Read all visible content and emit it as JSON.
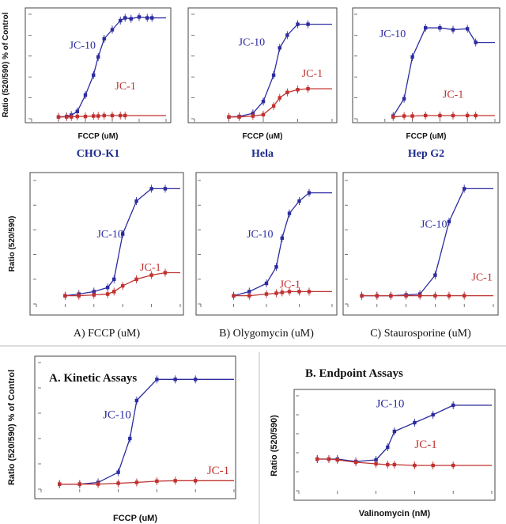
{
  "colors": {
    "jc10": "#2c2ca0",
    "jc1": "#c0312f",
    "caption": "#1d2a8c",
    "frame": "#444444",
    "text": "#111111"
  },
  "chart_data": [
    {
      "type": "scatter",
      "xscale": "log",
      "xlim": [
        0.001,
        100
      ],
      "ylim": [
        0,
        1150
      ],
      "xlabel": "FCCP (uM)",
      "ylabel": "",
      "caption": "CHO-K1",
      "series": [
        {
          "name": "JC-10",
          "x": [
            0.01,
            0.02,
            0.03,
            0.05,
            0.1,
            0.2,
            0.3,
            0.5,
            1,
            2,
            3,
            5,
            10,
            20,
            30
          ],
          "y": [
            20,
            25,
            40,
            80,
            260,
            480,
            680,
            880,
            980,
            1080,
            1110,
            1100,
            1120,
            1110,
            1110
          ]
        },
        {
          "name": "JC-1",
          "x": [
            0.01,
            0.02,
            0.03,
            0.05,
            0.1,
            0.2,
            0.3,
            0.5,
            1,
            2,
            3
          ],
          "y": [
            20,
            20,
            20,
            25,
            25,
            30,
            30,
            35,
            35,
            35,
            35
          ]
        }
      ],
      "labels": [
        "JC-10",
        "JC-1"
      ]
    },
    {
      "type": "scatter",
      "xscale": "log",
      "xlim": [
        0.001,
        10
      ],
      "ylim": [
        0,
        1150
      ],
      "xlabel": "FCCP (uM)",
      "caption": "Hela",
      "series": [
        {
          "name": "JC-10",
          "x": [
            0.01,
            0.02,
            0.05,
            0.1,
            0.2,
            0.3,
            0.5,
            1,
            2
          ],
          "y": [
            20,
            25,
            60,
            190,
            480,
            780,
            920,
            1040,
            1040
          ]
        },
        {
          "name": "JC-1",
          "x": [
            0.01,
            0.02,
            0.05,
            0.1,
            0.2,
            0.3,
            0.5,
            1,
            2
          ],
          "y": [
            20,
            20,
            30,
            45,
            140,
            230,
            290,
            320,
            330
          ]
        }
      ],
      "labels": [
        "JC-10",
        "JC-1"
      ]
    },
    {
      "type": "scatter",
      "xscale": "log",
      "xlim": [
        0.001,
        100
      ],
      "ylim": [
        0,
        1150
      ],
      "xlabel": "FCCP (uM)",
      "caption": "Hep G2",
      "series": [
        {
          "name": "JC-10",
          "x": [
            0.02,
            0.05,
            0.1,
            0.3,
            1,
            3,
            10,
            20
          ],
          "y": [
            30,
            220,
            680,
            1000,
            1000,
            980,
            990,
            840
          ]
        },
        {
          "name": "JC-1",
          "x": [
            0.02,
            0.05,
            0.1,
            0.3,
            1,
            3,
            10,
            20
          ],
          "y": [
            20,
            30,
            30,
            35,
            35,
            35,
            35,
            35
          ]
        }
      ],
      "labels": [
        "JC-10",
        "JC-1"
      ]
    },
    {
      "type": "scatter",
      "xscale": "log",
      "xlim": [
        0.0001,
        10
      ],
      "ylim": [
        0,
        15
      ],
      "xlabel": "",
      "ylabel": "Ratio (520/590)",
      "caption": "A) FCCP (uM)",
      "series": [
        {
          "name": "JC-10",
          "x": [
            0.001,
            0.003,
            0.01,
            0.03,
            0.05,
            0.1,
            0.3,
            1,
            3
          ],
          "y": [
            1.0,
            1.2,
            1.5,
            2.0,
            3.0,
            8.5,
            12.5,
            14.0,
            14.0
          ]
        },
        {
          "name": "JC-1",
          "x": [
            0.001,
            0.003,
            0.01,
            0.03,
            0.05,
            0.1,
            0.3,
            1,
            3
          ],
          "y": [
            1.0,
            1.0,
            1.1,
            1.2,
            1.5,
            2.2,
            3.0,
            3.5,
            3.8
          ]
        }
      ],
      "labels": [
        "JC-10",
        "JC-1"
      ]
    },
    {
      "type": "scatter",
      "xscale": "log",
      "xlim": [
        0.001,
        10
      ],
      "ylim": [
        0,
        15
      ],
      "xlabel": "",
      "caption": "B) Olygomycin (uM)",
      "series": [
        {
          "name": "JC-10",
          "x": [
            0.01,
            0.03,
            0.1,
            0.2,
            0.3,
            0.5,
            1,
            2
          ],
          "y": [
            1.0,
            1.5,
            2.5,
            4.5,
            8.0,
            11.0,
            12.5,
            13.5
          ]
        },
        {
          "name": "JC-1",
          "x": [
            0.01,
            0.03,
            0.1,
            0.2,
            0.3,
            0.5,
            1,
            2
          ],
          "y": [
            1.0,
            1.0,
            1.2,
            1.3,
            1.4,
            1.5,
            1.5,
            1.5
          ]
        }
      ],
      "labels": [
        "JC-10",
        "JC-1"
      ]
    },
    {
      "type": "scatter",
      "xscale": "log",
      "xlim": [
        0.001,
        100
      ],
      "ylim": [
        0,
        15
      ],
      "xlabel": "",
      "caption": "C) Staurosporine (uM)",
      "series": [
        {
          "name": "JC-10",
          "x": [
            0.003,
            0.01,
            0.03,
            0.1,
            0.3,
            1,
            3,
            10
          ],
          "y": [
            1.0,
            1.0,
            1.0,
            1.1,
            1.2,
            3.5,
            10.0,
            14.0
          ]
        },
        {
          "name": "JC-1",
          "x": [
            0.003,
            0.01,
            0.03,
            0.1,
            0.3,
            1,
            3,
            10
          ],
          "y": [
            1.0,
            1.0,
            1.0,
            1.0,
            1.0,
            1.0,
            1.0,
            1.0
          ]
        }
      ],
      "labels": [
        "JC-10",
        "JC-1"
      ]
    },
    {
      "type": "scatter",
      "xscale": "log",
      "xlim": [
        0.001,
        100
      ],
      "ylim": [
        0,
        1500
      ],
      "xlabel": "FCCP (uM)",
      "ylabel": "Ratio (520/590) % of Control",
      "title": "A. Kinetic Assays",
      "series": [
        {
          "name": "JC-10",
          "x": [
            0.003,
            0.01,
            0.03,
            0.1,
            0.2,
            0.3,
            1,
            3,
            10
          ],
          "y": [
            60,
            60,
            80,
            200,
            600,
            1050,
            1300,
            1300,
            1300
          ]
        },
        {
          "name": "JC-1",
          "x": [
            0.003,
            0.01,
            0.03,
            0.1,
            0.3,
            1,
            3,
            10
          ],
          "y": [
            60,
            60,
            60,
            70,
            80,
            95,
            100,
            100
          ]
        }
      ],
      "labels": [
        "JC-10",
        "JC-1"
      ]
    },
    {
      "type": "scatter",
      "xscale": "log",
      "xlim": [
        0.01,
        1000
      ],
      "ylim": [
        0,
        12
      ],
      "xlabel": "Valinomycin (nM)",
      "ylabel": "Ratio (520/590)",
      "title": "B. Endpoint Assays",
      "series": [
        {
          "name": "JC-10",
          "x": [
            0.03,
            0.06,
            0.1,
            0.3,
            1,
            2,
            3,
            10,
            30,
            100
          ],
          "y": [
            4.0,
            4.0,
            4.0,
            3.7,
            3.9,
            5.5,
            7.5,
            8.6,
            9.6,
            10.8
          ]
        },
        {
          "name": "JC-1",
          "x": [
            0.03,
            0.06,
            0.1,
            0.3,
            1,
            2,
            3,
            10,
            30,
            100
          ],
          "y": [
            4.0,
            4.0,
            3.9,
            3.6,
            3.4,
            3.3,
            3.3,
            3.2,
            3.2,
            3.2
          ]
        }
      ],
      "labels": [
        "JC-10",
        "JC-1"
      ]
    }
  ]
}
